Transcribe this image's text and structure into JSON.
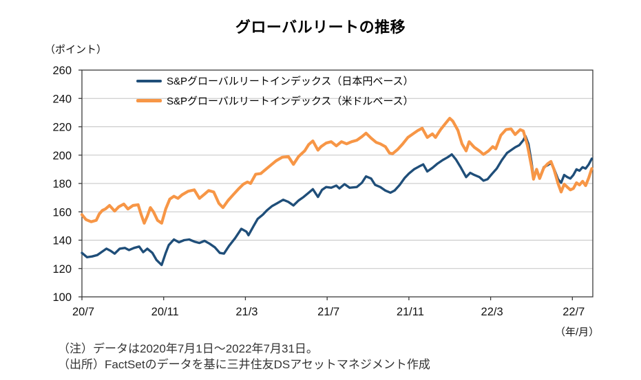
{
  "title": "グローバルリートの推移",
  "y_unit_label": "（ポイント）",
  "x_unit_label": "（年/月）",
  "notes": [
    "（注）データは2020年7月1日～2022年7月31日。",
    "（出所）FactSetのデータを基に三井住友DSアセットマネジメント作成"
  ],
  "colors": {
    "jpy_series": "#1f4e79",
    "usd_series": "#f79646",
    "axis": "#3a3a3a",
    "grid": "#c3c3c3"
  },
  "chart_data": {
    "type": "line",
    "title": "グローバルリートの推移",
    "ylabel": "ポイント",
    "xlabel": "年/月",
    "ylim": [
      100,
      260
    ],
    "yticks": [
      260,
      240,
      220,
      200,
      180,
      160,
      140,
      120,
      100
    ],
    "grid": "horizontal-only",
    "legend_position": "top-left-inside",
    "xlim_months_from_2020_07": [
      0,
      25
    ],
    "xticks": [
      {
        "label": "20/7",
        "t": 0
      },
      {
        "label": "20/11",
        "t": 4
      },
      {
        "label": "21/3",
        "t": 8
      },
      {
        "label": "21/7",
        "t": 12
      },
      {
        "label": "21/11",
        "t": 16
      },
      {
        "label": "22/3",
        "t": 20
      },
      {
        "label": "22/7",
        "t": 24
      }
    ],
    "series": [
      {
        "name": "S&Pグローバルリートインデックス（日本円ベース）",
        "color": "#1f4e79",
        "points": [
          [
            0,
            131
          ],
          [
            0.25,
            128
          ],
          [
            0.5,
            128.5
          ],
          [
            0.75,
            129.5
          ],
          [
            1.0,
            132
          ],
          [
            1.2,
            134
          ],
          [
            1.4,
            132.5
          ],
          [
            1.6,
            130.5
          ],
          [
            1.85,
            134
          ],
          [
            2.1,
            134.5
          ],
          [
            2.3,
            133
          ],
          [
            2.55,
            134.5
          ],
          [
            2.8,
            135.5
          ],
          [
            3.0,
            131.5
          ],
          [
            3.2,
            134
          ],
          [
            3.45,
            131
          ],
          [
            3.65,
            126
          ],
          [
            3.9,
            122.5
          ],
          [
            4.1,
            131
          ],
          [
            4.25,
            136.5
          ],
          [
            4.5,
            140.5
          ],
          [
            4.75,
            138.5
          ],
          [
            5.0,
            140
          ],
          [
            5.25,
            140.5
          ],
          [
            5.5,
            139
          ],
          [
            5.75,
            138
          ],
          [
            6.0,
            139.5
          ],
          [
            6.25,
            137.5
          ],
          [
            6.5,
            135
          ],
          [
            6.75,
            131
          ],
          [
            6.95,
            130.5
          ],
          [
            7.2,
            136
          ],
          [
            7.5,
            141.5
          ],
          [
            7.8,
            148
          ],
          [
            8.05,
            146
          ],
          [
            8.15,
            143.5
          ],
          [
            8.4,
            150
          ],
          [
            8.6,
            155
          ],
          [
            8.85,
            158
          ],
          [
            9.05,
            161
          ],
          [
            9.3,
            164
          ],
          [
            9.55,
            166
          ],
          [
            9.85,
            168.5
          ],
          [
            10.1,
            167
          ],
          [
            10.35,
            164.5
          ],
          [
            10.6,
            168
          ],
          [
            10.85,
            170.5
          ],
          [
            11.1,
            173.5
          ],
          [
            11.3,
            176
          ],
          [
            11.55,
            170.5
          ],
          [
            11.75,
            175.5
          ],
          [
            11.95,
            177.5
          ],
          [
            12.2,
            177
          ],
          [
            12.45,
            178.5
          ],
          [
            12.6,
            176.5
          ],
          [
            12.85,
            179.5
          ],
          [
            13.1,
            177
          ],
          [
            13.45,
            177.5
          ],
          [
            13.7,
            180.5
          ],
          [
            13.9,
            185
          ],
          [
            14.15,
            183.5
          ],
          [
            14.35,
            179
          ],
          [
            14.6,
            177.5
          ],
          [
            14.85,
            175
          ],
          [
            15.1,
            173.5
          ],
          [
            15.3,
            175
          ],
          [
            15.55,
            179
          ],
          [
            15.8,
            184
          ],
          [
            16.0,
            187
          ],
          [
            16.25,
            190
          ],
          [
            16.5,
            192
          ],
          [
            16.7,
            193.5
          ],
          [
            16.9,
            188.5
          ],
          [
            17.15,
            191
          ],
          [
            17.4,
            194
          ],
          [
            17.65,
            196.5
          ],
          [
            17.9,
            198.5
          ],
          [
            18.1,
            200.5
          ],
          [
            18.3,
            197
          ],
          [
            18.55,
            191
          ],
          [
            18.8,
            184.5
          ],
          [
            19.0,
            187.5
          ],
          [
            19.2,
            186
          ],
          [
            19.45,
            184.5
          ],
          [
            19.65,
            182
          ],
          [
            19.85,
            183
          ],
          [
            20.05,
            186.5
          ],
          [
            20.3,
            190.5
          ],
          [
            20.55,
            196.5
          ],
          [
            20.8,
            201.5
          ],
          [
            21.0,
            203.5
          ],
          [
            21.2,
            205.5
          ],
          [
            21.4,
            207
          ],
          [
            21.6,
            210.5
          ],
          [
            21.7,
            213.5
          ],
          [
            21.85,
            208
          ],
          [
            22.0,
            195
          ],
          [
            22.1,
            184.5
          ],
          [
            22.25,
            189.5
          ],
          [
            22.4,
            184
          ],
          [
            22.6,
            191.5
          ],
          [
            22.8,
            193
          ],
          [
            22.95,
            194.5
          ],
          [
            23.1,
            190.5
          ],
          [
            23.3,
            183
          ],
          [
            23.45,
            180.5
          ],
          [
            23.6,
            186
          ],
          [
            23.75,
            184.5
          ],
          [
            23.9,
            183.5
          ],
          [
            24.05,
            186
          ],
          [
            24.2,
            190
          ],
          [
            24.35,
            189
          ],
          [
            24.5,
            191.5
          ],
          [
            24.65,
            190.5
          ],
          [
            24.8,
            193.5
          ],
          [
            24.95,
            197.5
          ]
        ]
      },
      {
        "name": "S&Pグローバルリートインデックス（米ドルベース）",
        "color": "#f79646",
        "points": [
          [
            0,
            158
          ],
          [
            0.2,
            154.5
          ],
          [
            0.45,
            153
          ],
          [
            0.7,
            154
          ],
          [
            0.85,
            158.5
          ],
          [
            1.0,
            161
          ],
          [
            1.15,
            162
          ],
          [
            1.35,
            164.5
          ],
          [
            1.6,
            160.5
          ],
          [
            1.8,
            163.5
          ],
          [
            2.05,
            165.5
          ],
          [
            2.25,
            162
          ],
          [
            2.5,
            164.5
          ],
          [
            2.75,
            165
          ],
          [
            2.9,
            158
          ],
          [
            3.05,
            152
          ],
          [
            3.2,
            157
          ],
          [
            3.35,
            163
          ],
          [
            3.5,
            160
          ],
          [
            3.7,
            154
          ],
          [
            3.9,
            152
          ],
          [
            4.1,
            162
          ],
          [
            4.3,
            169
          ],
          [
            4.5,
            171
          ],
          [
            4.7,
            169.5
          ],
          [
            4.9,
            172
          ],
          [
            5.2,
            174.5
          ],
          [
            5.5,
            175.5
          ],
          [
            5.75,
            169.5
          ],
          [
            6.0,
            172.5
          ],
          [
            6.2,
            175
          ],
          [
            6.45,
            174
          ],
          [
            6.7,
            166
          ],
          [
            6.9,
            163
          ],
          [
            7.15,
            168
          ],
          [
            7.4,
            172
          ],
          [
            7.65,
            176
          ],
          [
            7.9,
            179.5
          ],
          [
            8.1,
            181
          ],
          [
            8.25,
            180
          ],
          [
            8.5,
            186.5
          ],
          [
            8.75,
            187
          ],
          [
            9.0,
            190
          ],
          [
            9.25,
            193
          ],
          [
            9.5,
            196
          ],
          [
            9.8,
            198.5
          ],
          [
            10.1,
            199
          ],
          [
            10.35,
            193.5
          ],
          [
            10.6,
            199
          ],
          [
            10.9,
            203
          ],
          [
            11.1,
            207.5
          ],
          [
            11.3,
            210
          ],
          [
            11.55,
            203.5
          ],
          [
            11.7,
            206
          ],
          [
            11.95,
            208.5
          ],
          [
            12.2,
            209.5
          ],
          [
            12.45,
            206.5
          ],
          [
            12.7,
            209.5
          ],
          [
            12.95,
            208
          ],
          [
            13.2,
            209.5
          ],
          [
            13.45,
            210.5
          ],
          [
            13.7,
            213
          ],
          [
            13.9,
            215.5
          ],
          [
            14.15,
            212
          ],
          [
            14.4,
            209
          ],
          [
            14.6,
            208
          ],
          [
            14.85,
            206
          ],
          [
            15.05,
            201.5
          ],
          [
            15.2,
            201
          ],
          [
            15.45,
            204
          ],
          [
            15.7,
            208
          ],
          [
            15.95,
            212.5
          ],
          [
            16.2,
            215
          ],
          [
            16.45,
            217.5
          ],
          [
            16.65,
            219
          ],
          [
            16.9,
            212.5
          ],
          [
            17.15,
            215
          ],
          [
            17.3,
            212.5
          ],
          [
            17.55,
            218
          ],
          [
            17.8,
            222.5
          ],
          [
            18.0,
            226
          ],
          [
            18.15,
            224
          ],
          [
            18.4,
            217.5
          ],
          [
            18.6,
            208
          ],
          [
            18.8,
            203
          ],
          [
            18.95,
            209.5
          ],
          [
            19.2,
            205.5
          ],
          [
            19.45,
            203
          ],
          [
            19.65,
            200.5
          ],
          [
            19.9,
            203
          ],
          [
            20.1,
            206
          ],
          [
            20.25,
            204.5
          ],
          [
            20.5,
            214
          ],
          [
            20.75,
            218
          ],
          [
            21.0,
            218.5
          ],
          [
            21.2,
            214.5
          ],
          [
            21.45,
            218
          ],
          [
            21.6,
            217
          ],
          [
            21.8,
            207
          ],
          [
            22.0,
            192
          ],
          [
            22.1,
            183
          ],
          [
            22.25,
            190
          ],
          [
            22.4,
            183.5
          ],
          [
            22.6,
            191
          ],
          [
            22.8,
            194
          ],
          [
            22.95,
            195.5
          ],
          [
            23.1,
            190
          ],
          [
            23.3,
            180
          ],
          [
            23.45,
            174
          ],
          [
            23.6,
            179.5
          ],
          [
            23.75,
            177.5
          ],
          [
            23.9,
            175.5
          ],
          [
            24.05,
            176.5
          ],
          [
            24.2,
            180.5
          ],
          [
            24.35,
            179
          ],
          [
            24.5,
            181.5
          ],
          [
            24.65,
            178.5
          ],
          [
            24.8,
            184
          ],
          [
            24.95,
            190.5
          ]
        ]
      }
    ]
  }
}
